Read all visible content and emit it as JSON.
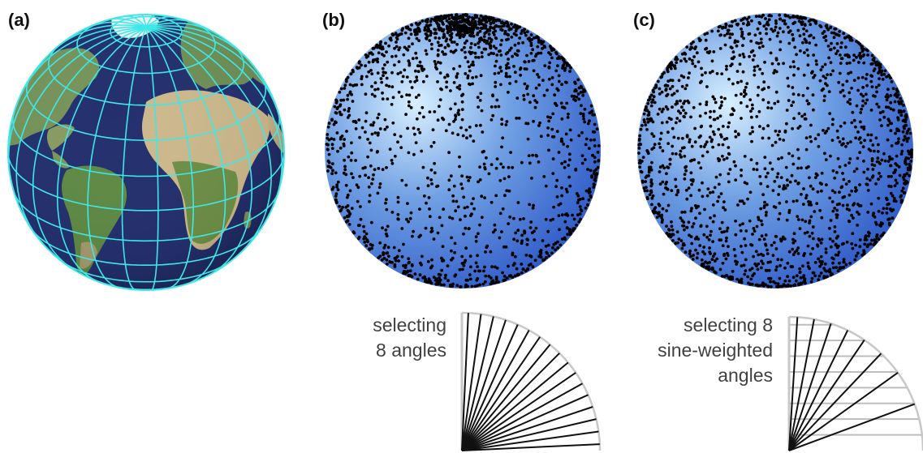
{
  "panels": [
    {
      "label": "(a)"
    },
    {
      "label": "(b)",
      "caption_lines": [
        "selecting",
        "8 angles"
      ],
      "angle_count": 8,
      "angle_scheme": "uniform",
      "dots_concentrated_at": "poles"
    },
    {
      "label": "(c)",
      "caption_lines": [
        "selecting 8",
        "sine-weighted",
        "angles"
      ],
      "angle_count": 8,
      "angle_scheme": "sine-weighted",
      "dots_concentrated_at": "none"
    }
  ],
  "colors": {
    "ocean": "#24306e",
    "grid_lines": "#3ee8e8",
    "sphere_highlight": "#d8f0ff",
    "sphere_mid": "#6f9fe3",
    "sphere_edge": "#2a56c5",
    "dots": "#000000",
    "quadrant_arc": "#c8c8c8",
    "quadrant_rays": "#111111",
    "sine_bands": "#bdbdbd"
  }
}
